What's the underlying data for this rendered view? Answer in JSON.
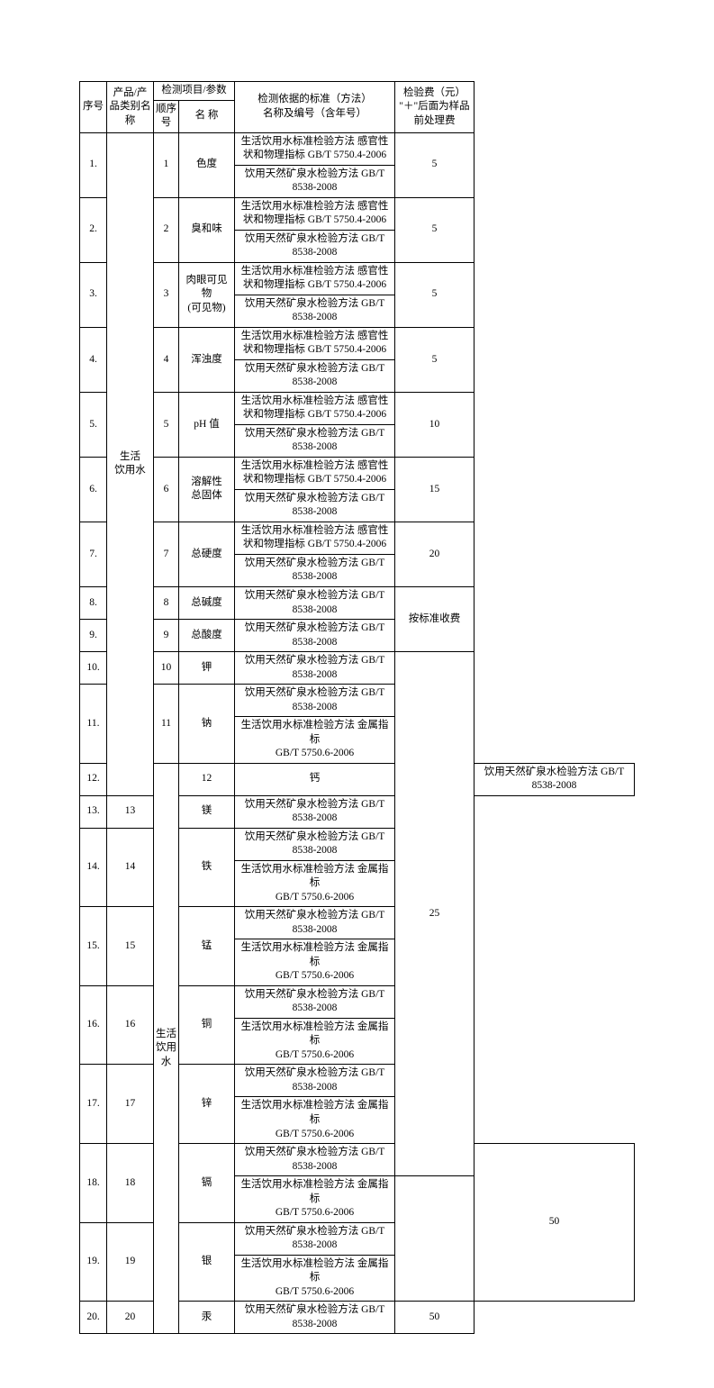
{
  "header": {
    "seq": "序号",
    "category": "产品/产品类别名称",
    "testgroup": "检测项目/参数",
    "testno": "顺序号",
    "testname": "名 称",
    "standard": "检测依据的标准（方法）\n名称及编号（含年号）",
    "fee": "检验费（元）\n\"＋\"后面为样品前处理费"
  },
  "std_drinking1": "生活饮用水标准检验方法 感官性状和物理指标 GB/T 5750.4-2006",
  "std_mineral": "饮用天然矿泉水检验方法 GB/T 8538-2008",
  "std_metal": "生活饮用水标准检验方法 金属指标\nGB/T 5750.6-2006",
  "categories": {
    "cat1": "生活\n饮用水",
    "cat2": "生活饮用水"
  },
  "rows": {
    "r1": {
      "seq": "1.",
      "no": "1",
      "name": "色度",
      "fee": "5"
    },
    "r2": {
      "seq": "2.",
      "no": "2",
      "name": "臭和味",
      "fee": "5"
    },
    "r3": {
      "seq": "3.",
      "no": "3",
      "name": "肉眼可见物\n(可见物)",
      "fee": "5"
    },
    "r4": {
      "seq": "4.",
      "no": "4",
      "name": "浑浊度",
      "fee": "5"
    },
    "r5": {
      "seq": "5.",
      "no": "5",
      "name": "pH 值",
      "fee": "10"
    },
    "r6": {
      "seq": "6.",
      "no": "6",
      "name": "溶解性\n总固体",
      "fee": "15"
    },
    "r7": {
      "seq": "7.",
      "no": "7",
      "name": "总硬度",
      "fee": "20"
    },
    "r8": {
      "seq": "8.",
      "no": "8",
      "name": "总碱度"
    },
    "r9": {
      "seq": "9.",
      "no": "9",
      "name": "总酸度"
    },
    "r89fee": "按标准收费",
    "r10": {
      "seq": "10.",
      "no": "10",
      "name": "钾"
    },
    "r11": {
      "seq": "11.",
      "no": "11",
      "name": "钠"
    },
    "r12": {
      "seq": "12.",
      "no": "12",
      "name": "钙"
    },
    "r13": {
      "seq": "13.",
      "no": "13",
      "name": "镁"
    },
    "r14": {
      "seq": "14.",
      "no": "14",
      "name": "铁"
    },
    "r15": {
      "seq": "15.",
      "no": "15",
      "name": "锰"
    },
    "r16": {
      "seq": "16.",
      "no": "16",
      "name": "铜"
    },
    "r17": {
      "seq": "17.",
      "no": "17",
      "name": "锌"
    },
    "r1017fee": "25",
    "r18": {
      "seq": "18.",
      "no": "18",
      "name": "镉",
      "fee": "50"
    },
    "r19": {
      "seq": "19.",
      "no": "19",
      "name": "银"
    },
    "r20": {
      "seq": "20.",
      "no": "20",
      "name": "汞",
      "fee": "50"
    }
  }
}
